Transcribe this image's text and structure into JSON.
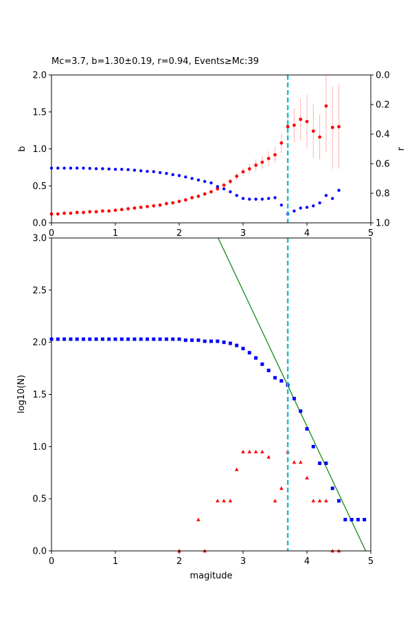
{
  "chart_data": [
    {
      "type": "scatter",
      "title": "Mc=3.7, b=1.30±0.19, r=0.94, Events≥Mc:39",
      "xlabel": "",
      "ylabel": "b",
      "y2label": "r",
      "xlim": [
        0,
        5
      ],
      "ylim": [
        0,
        2
      ],
      "y2lim": [
        1,
        0
      ],
      "xticks": [
        "0",
        "1",
        "2",
        "3",
        "4",
        "5"
      ],
      "yticks": [
        "0.0",
        "0.5",
        "1.0",
        "1.5",
        "2.0"
      ],
      "y2ticks": [
        "0.0",
        "0.2",
        "0.4",
        "0.6",
        "0.8",
        "1.0"
      ],
      "mc_line": 3.7,
      "mc_color": "#17becf",
      "series": [
        {
          "color": "#ff0000",
          "axis": "left",
          "x": [
            0.0,
            0.1,
            0.2,
            0.3,
            0.4,
            0.5,
            0.6,
            0.7,
            0.8,
            0.9,
            1.0,
            1.1,
            1.2,
            1.3,
            1.4,
            1.5,
            1.6,
            1.7,
            1.8,
            1.9,
            2.0,
            2.1,
            2.2,
            2.3,
            2.4,
            2.5,
            2.6,
            2.7,
            2.8,
            2.9,
            3.0,
            3.1,
            3.2,
            3.3,
            3.4,
            3.5,
            3.6,
            3.7,
            3.8,
            3.9,
            4.0,
            4.1,
            4.2,
            4.3,
            4.4,
            4.5
          ],
          "y": [
            0.12,
            0.12,
            0.13,
            0.13,
            0.14,
            0.14,
            0.15,
            0.15,
            0.16,
            0.16,
            0.17,
            0.18,
            0.19,
            0.2,
            0.21,
            0.22,
            0.23,
            0.24,
            0.26,
            0.27,
            0.29,
            0.31,
            0.34,
            0.36,
            0.39,
            0.42,
            0.46,
            0.51,
            0.56,
            0.63,
            0.69,
            0.73,
            0.78,
            0.82,
            0.87,
            0.92,
            1.08,
            1.3,
            1.32,
            1.4,
            1.37,
            1.24,
            1.16,
            1.58,
            1.29,
            1.3
          ],
          "err": [
            0.01,
            0.01,
            0.01,
            0.01,
            0.01,
            0.01,
            0.01,
            0.01,
            0.01,
            0.01,
            0.01,
            0.01,
            0.01,
            0.01,
            0.01,
            0.01,
            0.01,
            0.01,
            0.01,
            0.01,
            0.01,
            0.01,
            0.02,
            0.02,
            0.02,
            0.02,
            0.03,
            0.03,
            0.04,
            0.05,
            0.06,
            0.07,
            0.08,
            0.09,
            0.1,
            0.11,
            0.13,
            0.19,
            0.23,
            0.28,
            0.36,
            0.36,
            0.3,
            0.62,
            0.56,
            0.57
          ]
        },
        {
          "color": "#0000ff",
          "axis": "right",
          "x": [
            0.0,
            0.1,
            0.2,
            0.3,
            0.4,
            0.5,
            0.6,
            0.7,
            0.8,
            0.9,
            1.0,
            1.1,
            1.2,
            1.3,
            1.4,
            1.5,
            1.6,
            1.7,
            1.8,
            1.9,
            2.0,
            2.1,
            2.2,
            2.3,
            2.4,
            2.5,
            2.6,
            2.7,
            2.8,
            2.9,
            3.0,
            3.1,
            3.2,
            3.3,
            3.4,
            3.5,
            3.6,
            3.7,
            3.8,
            3.9,
            4.0,
            4.1,
            4.2,
            4.3,
            4.4,
            4.5
          ],
          "y": [
            0.63,
            0.63,
            0.63,
            0.63,
            0.63,
            0.63,
            0.632,
            0.634,
            0.634,
            0.636,
            0.638,
            0.638,
            0.64,
            0.644,
            0.648,
            0.652,
            0.654,
            0.66,
            0.666,
            0.674,
            0.68,
            0.69,
            0.7,
            0.71,
            0.72,
            0.73,
            0.755,
            0.77,
            0.79,
            0.815,
            0.835,
            0.84,
            0.84,
            0.84,
            0.835,
            0.83,
            0.88,
            0.94,
            0.92,
            0.9,
            0.895,
            0.885,
            0.865,
            0.815,
            0.835,
            0.78
          ]
        }
      ]
    },
    {
      "type": "scatter",
      "title": "",
      "xlabel": "magitude",
      "ylabel": "log10(N)",
      "xlim": [
        0,
        5
      ],
      "ylim": [
        0,
        3
      ],
      "xticks": [
        "0",
        "1",
        "2",
        "3",
        "4",
        "5"
      ],
      "yticks": [
        "0.0",
        "0.5",
        "1.0",
        "1.5",
        "2.0",
        "2.5",
        "3.0"
      ],
      "mc_line": 3.7,
      "mc_color": "#17becf",
      "fit_line": {
        "color": "#008000",
        "x": [
          2.61,
          4.92
        ],
        "y": [
          3.0,
          0.0
        ]
      },
      "series": [
        {
          "color": "#0000ff",
          "marker": "square",
          "x": [
            0.0,
            0.1,
            0.2,
            0.3,
            0.4,
            0.5,
            0.6,
            0.7,
            0.8,
            0.9,
            1.0,
            1.1,
            1.2,
            1.3,
            1.4,
            1.5,
            1.6,
            1.7,
            1.8,
            1.9,
            2.0,
            2.1,
            2.2,
            2.3,
            2.4,
            2.5,
            2.6,
            2.7,
            2.8,
            2.9,
            3.0,
            3.1,
            3.2,
            3.3,
            3.4,
            3.5,
            3.6,
            3.7,
            3.8,
            3.9,
            4.0,
            4.1,
            4.2,
            4.3,
            4.4,
            4.5,
            4.6,
            4.7,
            4.8,
            4.9
          ],
          "y": [
            2.03,
            2.03,
            2.03,
            2.03,
            2.03,
            2.03,
            2.03,
            2.03,
            2.03,
            2.03,
            2.03,
            2.03,
            2.03,
            2.03,
            2.03,
            2.03,
            2.03,
            2.03,
            2.03,
            2.03,
            2.03,
            2.02,
            2.02,
            2.02,
            2.01,
            2.01,
            2.01,
            2.0,
            1.99,
            1.97,
            1.94,
            1.9,
            1.85,
            1.79,
            1.73,
            1.66,
            1.63,
            1.59,
            1.46,
            1.34,
            1.17,
            1.0,
            0.84,
            0.84,
            0.6,
            0.48,
            0.3,
            0.3,
            0.3,
            0.3
          ]
        },
        {
          "color": "#ff0000",
          "marker": "triangle",
          "x": [
            2.0,
            2.3,
            2.4,
            2.6,
            2.7,
            2.8,
            2.9,
            3.0,
            3.1,
            3.2,
            3.3,
            3.4,
            3.5,
            3.6,
            3.7,
            3.8,
            3.9,
            4.0,
            4.1,
            4.2,
            4.3,
            4.4,
            4.5
          ],
          "y": [
            0.0,
            0.3,
            0.0,
            0.48,
            0.48,
            0.48,
            0.78,
            0.95,
            0.95,
            0.95,
            0.95,
            0.9,
            0.48,
            0.6,
            0.95,
            0.85,
            0.85,
            0.7,
            0.48,
            0.48,
            0.48,
            0.0,
            0.0
          ]
        }
      ]
    }
  ]
}
